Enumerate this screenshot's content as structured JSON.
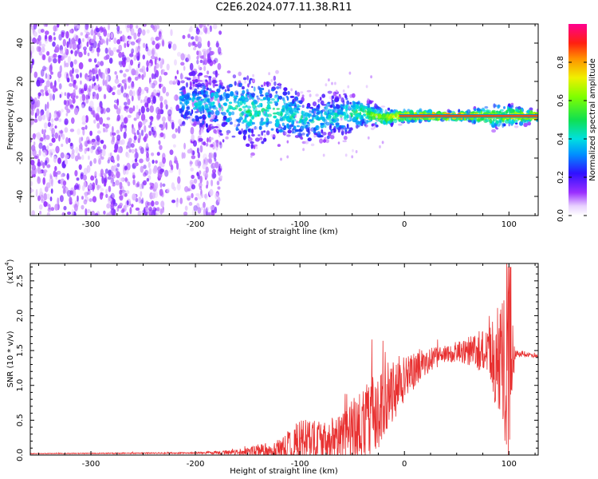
{
  "title": "C2E6.2024.077.11.38.R11",
  "colors": {
    "snr_line": "#e83030",
    "ridge": "#ff2020",
    "axis": "#000000"
  },
  "chart_data": [
    {
      "type": "heatmap",
      "xlabel": "Height of straight line (km)",
      "ylabel": "Frequency (Hz)",
      "xlim": [
        -358,
        128
      ],
      "ylim": [
        -50,
        50
      ],
      "xticks": [
        -300,
        -200,
        -100,
        0,
        100
      ],
      "yticks": [
        -40,
        -20,
        0,
        20,
        40
      ],
      "colorbar": {
        "label": "Normalized spectral amplitude",
        "range": [
          0.0,
          1.0
        ],
        "ticks": [
          0.0,
          0.2,
          0.4,
          0.6,
          0.8
        ]
      },
      "ridge": [
        {
          "x": -215,
          "y": 10,
          "width": 12,
          "amp": 0.35
        },
        {
          "x": -180,
          "y": 8,
          "width": 14,
          "amp": 0.4
        },
        {
          "x": -150,
          "y": 5,
          "width": 16,
          "amp": 0.45
        },
        {
          "x": -120,
          "y": 4,
          "width": 14,
          "amp": 0.45
        },
        {
          "x": -90,
          "y": 0,
          "width": 10,
          "amp": 0.4
        },
        {
          "x": -60,
          "y": 2,
          "width": 12,
          "amp": 0.4
        },
        {
          "x": -40,
          "y": 4,
          "width": 6,
          "amp": 0.55
        },
        {
          "x": -20,
          "y": 1,
          "width": 4,
          "amp": 0.65
        },
        {
          "x": 0,
          "y": 2,
          "width": 3,
          "amp": 0.8
        },
        {
          "x": 30,
          "y": 2,
          "width": 2,
          "amp": 0.9
        },
        {
          "x": 60,
          "y": 2,
          "width": 2,
          "amp": 0.9
        },
        {
          "x": 90,
          "y": 2,
          "width": 6,
          "amp": 0.6
        },
        {
          "x": 128,
          "y": 2,
          "width": 2,
          "amp": 0.9
        }
      ]
    },
    {
      "type": "line",
      "xlabel": "Height of straight line (km)",
      "ylabel": "SNR (10 * v/v)",
      "yscale_note": "(x10",
      "yscale_exp": "4",
      "xlim": [
        -358,
        128
      ],
      "ylim": [
        0,
        2.75
      ],
      "xticks": [
        -300,
        -200,
        -100,
        0,
        100
      ],
      "yticks": [
        "0.0",
        "0.5",
        "1.0",
        "1.5",
        "2.0",
        "2.5"
      ],
      "envelope": [
        {
          "x": -358,
          "base": 0.02,
          "amp": 0.005
        },
        {
          "x": -200,
          "base": 0.03,
          "amp": 0.01
        },
        {
          "x": -160,
          "base": 0.04,
          "amp": 0.04
        },
        {
          "x": -140,
          "base": 0.06,
          "amp": 0.08
        },
        {
          "x": -120,
          "base": 0.08,
          "amp": 0.15
        },
        {
          "x": -100,
          "base": 0.12,
          "amp": 0.4
        },
        {
          "x": -80,
          "base": 0.18,
          "amp": 0.3
        },
        {
          "x": -60,
          "base": 0.25,
          "amp": 0.35
        },
        {
          "x": -40,
          "base": 0.4,
          "amp": 0.6
        },
        {
          "x": -20,
          "base": 0.75,
          "amp": 0.55
        },
        {
          "x": -10,
          "base": 0.95,
          "amp": 0.45
        },
        {
          "x": 0,
          "base": 1.1,
          "amp": 0.35
        },
        {
          "x": 20,
          "base": 1.35,
          "amp": 0.2
        },
        {
          "x": 40,
          "base": 1.45,
          "amp": 0.12
        },
        {
          "x": 60,
          "base": 1.5,
          "amp": 0.2
        },
        {
          "x": 80,
          "base": 1.5,
          "amp": 0.35
        },
        {
          "x": 92,
          "base": 1.3,
          "amp": 0.9
        },
        {
          "x": 100,
          "base": 1.2,
          "amp": 1.4
        },
        {
          "x": 106,
          "base": 1.45,
          "amp": 0.05
        },
        {
          "x": 128,
          "base": 1.42,
          "amp": 0.02
        }
      ]
    }
  ]
}
